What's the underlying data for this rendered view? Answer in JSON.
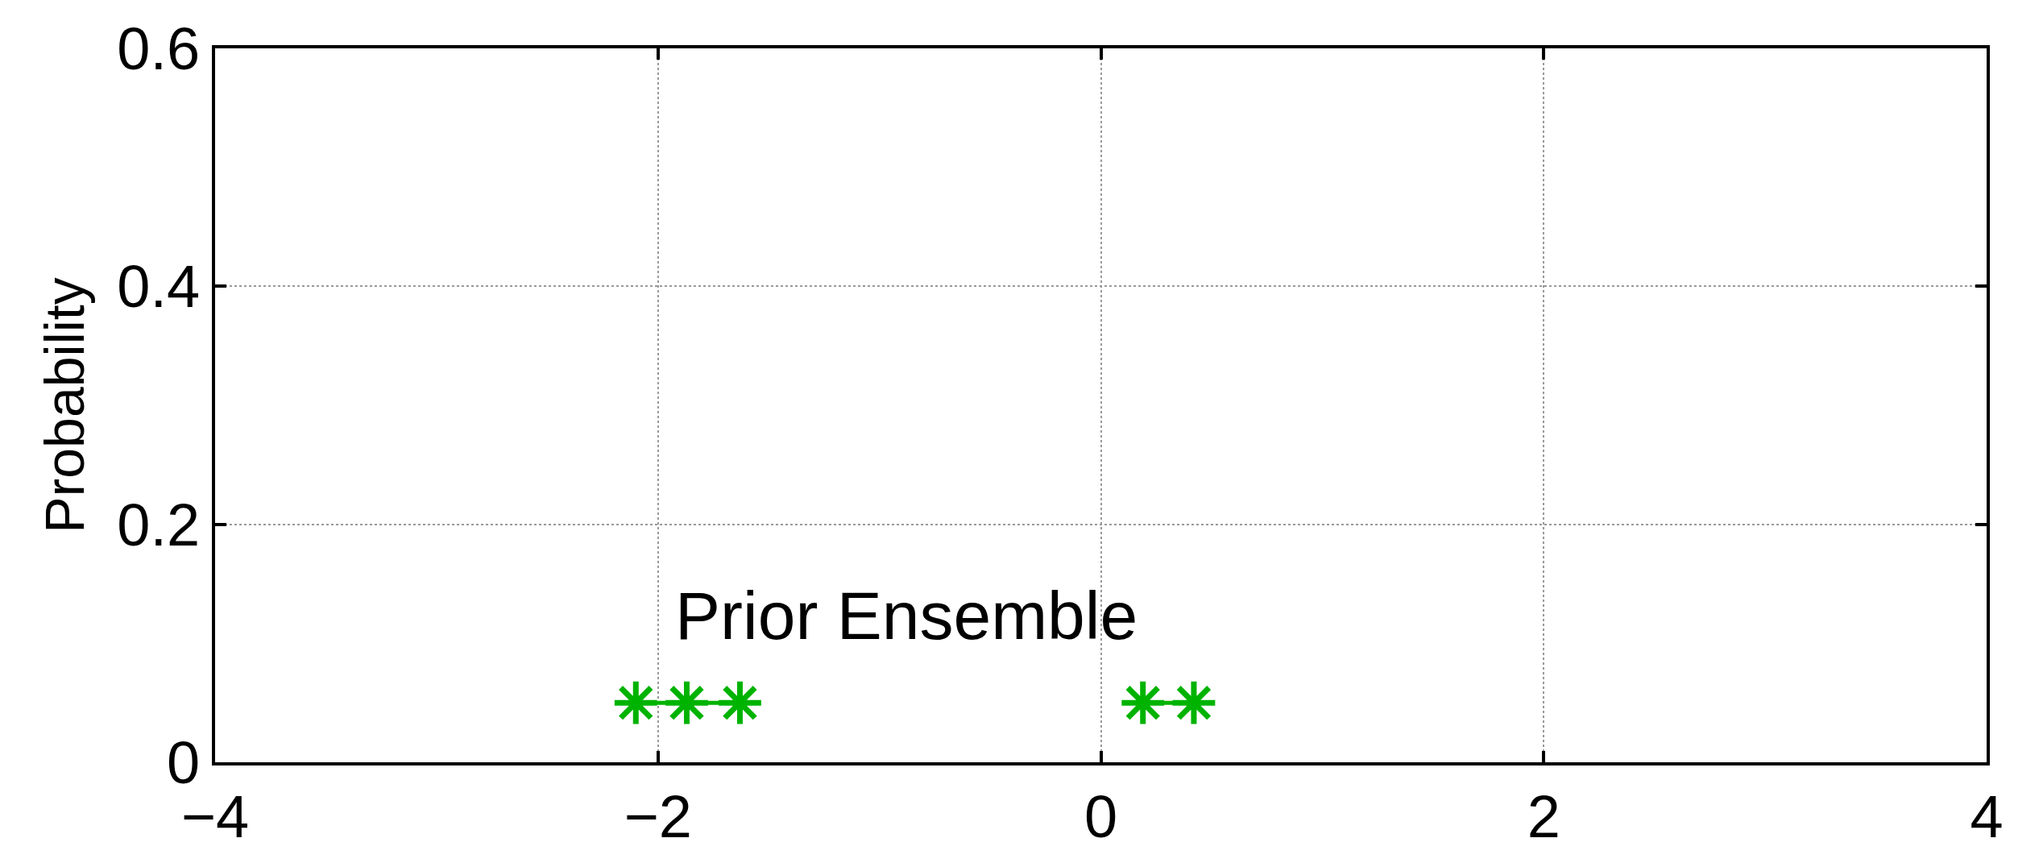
{
  "chart_data": {
    "type": "line",
    "ylabel": "Probability",
    "series": [
      {
        "color": "#00b300",
        "x": [
          -2.1,
          -1.87,
          -1.63
        ],
        "values": [
          0.05,
          0.05,
          0.05
        ]
      },
      {
        "color": "#00b300",
        "x": [
          0.19,
          0.42
        ],
        "values": [
          0.05,
          0.05
        ]
      }
    ],
    "annotations": [
      "Prior Ensemble"
    ],
    "xlim": [
      -4,
      4
    ],
    "xticks": [
      -4,
      -2,
      0,
      2,
      4
    ],
    "ylim": [
      0,
      0.6
    ],
    "yticks": [
      0,
      0.2,
      0.4,
      0.6
    ],
    "grid": true,
    "marker": "cross",
    "line_style": "solid"
  }
}
